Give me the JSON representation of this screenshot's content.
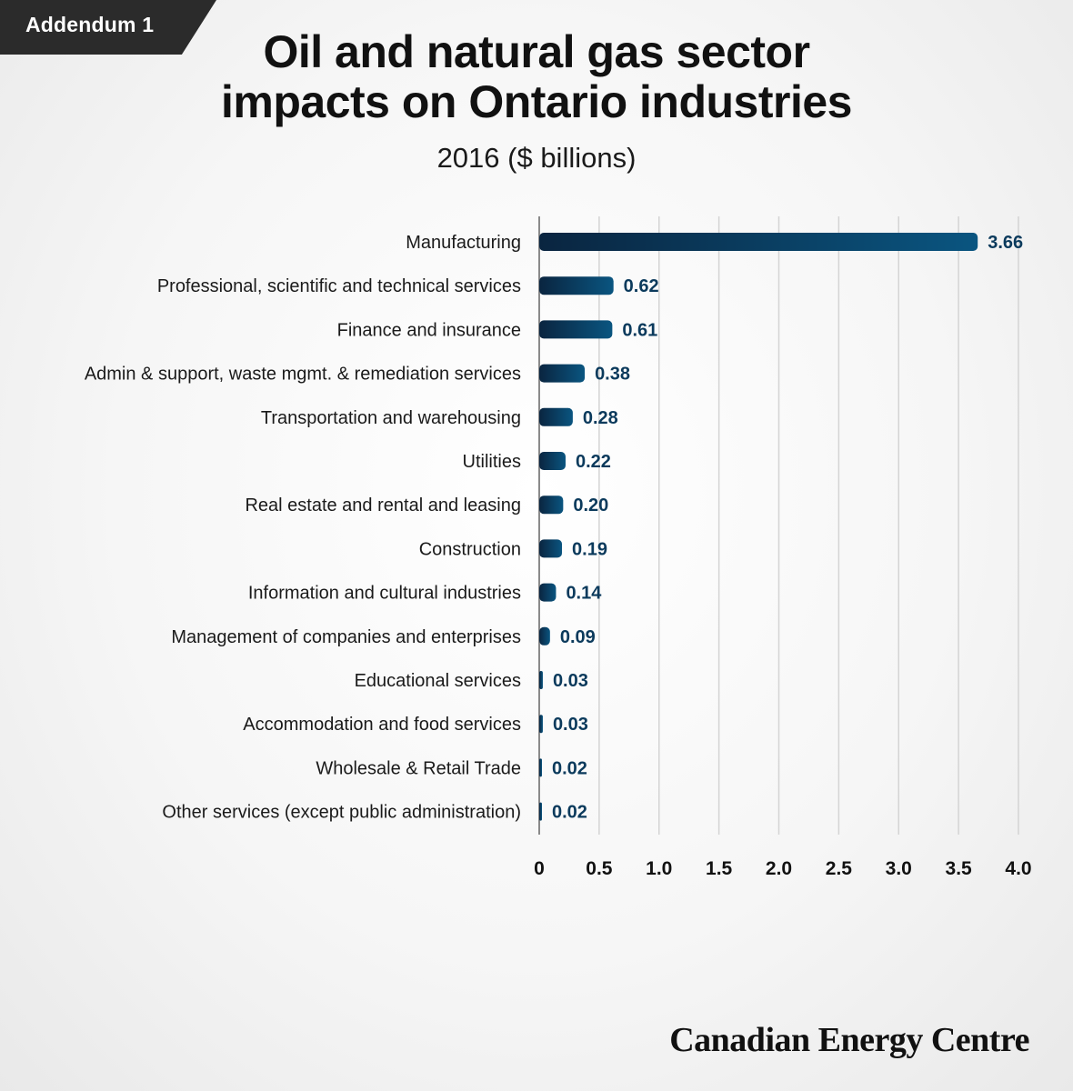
{
  "tag": {
    "label": "Addendum 1"
  },
  "title_line1": "Oil and natural gas sector",
  "title_line2": "impacts on Ontario industries",
  "brand": "Canadian Energy Centre",
  "colors": {
    "bar_dark": "#0a2540",
    "bar_light": "#0a5580",
    "value_text": "#0b3a5c",
    "grid": "#d4d4d4",
    "axis": "#8a8a8a"
  },
  "chart_data": {
    "type": "bar",
    "orientation": "horizontal",
    "title": "Oil and natural gas sector impacts on Ontario industries",
    "subtitle": "2016 ($ billions)",
    "categories": [
      "Manufacturing",
      "Professional, scientific and technical services",
      "Finance and insurance",
      "Admin & support, waste mgmt. & remediation services",
      "Transportation and warehousing",
      "Utilities",
      "Real estate and rental and leasing",
      "Construction",
      "Information and cultural industries",
      "Management of companies and enterprises",
      "Educational services",
      "Accommodation and food services",
      "Wholesale & Retail Trade",
      "Other services (except public administration)"
    ],
    "values": [
      3.66,
      0.62,
      0.61,
      0.38,
      0.28,
      0.22,
      0.2,
      0.19,
      0.14,
      0.09,
      0.03,
      0.03,
      0.02,
      0.02
    ],
    "value_labels": [
      "3.66",
      "0.62",
      "0.61",
      "0.38",
      "0.28",
      "0.22",
      "0.20",
      "0.19",
      "0.14",
      "0.09",
      "0.03",
      "0.03",
      "0.02",
      "0.02"
    ],
    "xlim": [
      0,
      4.0
    ],
    "xticks": [
      0,
      0.5,
      1.0,
      1.5,
      2.0,
      2.5,
      3.0,
      3.5,
      4.0
    ],
    "xtick_labels": [
      "0",
      "0.5",
      "1.0",
      "1.5",
      "2.0",
      "2.5",
      "3.0",
      "3.5",
      "4.0"
    ],
    "grid": true,
    "legend": "none"
  }
}
